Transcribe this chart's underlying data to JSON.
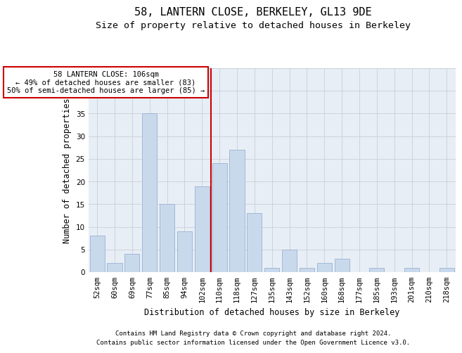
{
  "title1": "58, LANTERN CLOSE, BERKELEY, GL13 9DE",
  "title2": "Size of property relative to detached houses in Berkeley",
  "xlabel": "Distribution of detached houses by size in Berkeley",
  "ylabel": "Number of detached properties",
  "categories": [
    "52sqm",
    "60sqm",
    "69sqm",
    "77sqm",
    "85sqm",
    "94sqm",
    "102sqm",
    "110sqm",
    "118sqm",
    "127sqm",
    "135sqm",
    "143sqm",
    "152sqm",
    "160sqm",
    "168sqm",
    "177sqm",
    "185sqm",
    "193sqm",
    "201sqm",
    "210sqm",
    "218sqm"
  ],
  "values": [
    8,
    2,
    4,
    35,
    15,
    9,
    19,
    24,
    27,
    13,
    1,
    5,
    1,
    2,
    3,
    0,
    1,
    0,
    1,
    0,
    1
  ],
  "bar_color": "#c9d9ec",
  "bar_edge_color": "#a0b8d8",
  "grid_color": "#c8cfd8",
  "background_color": "#e8eef5",
  "annotation_text": "58 LANTERN CLOSE: 106sqm\n← 49% of detached houses are smaller (83)\n50% of semi-detached houses are larger (85) →",
  "vline_x_index": 6.5,
  "vline_color": "#cc0000",
  "box_color": "#cc0000",
  "footnote1": "Contains HM Land Registry data © Crown copyright and database right 2024.",
  "footnote2": "Contains public sector information licensed under the Open Government Licence v3.0.",
  "ylim": [
    0,
    45
  ],
  "yticks": [
    0,
    5,
    10,
    15,
    20,
    25,
    30,
    35,
    40,
    45
  ],
  "title1_fontsize": 11,
  "title2_fontsize": 9.5,
  "axis_label_fontsize": 8.5,
  "tick_fontsize": 7.5,
  "annotation_fontsize": 7.5,
  "footnote_fontsize": 6.5
}
